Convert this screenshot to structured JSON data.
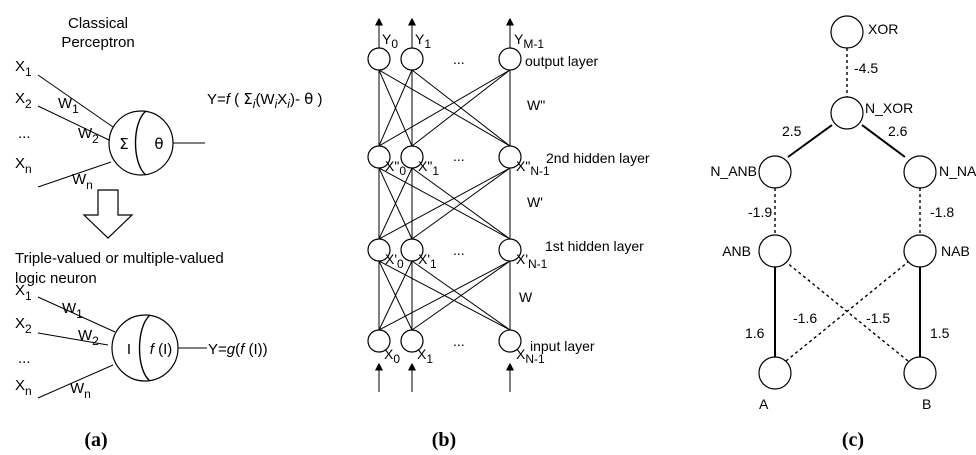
{
  "panel_a": {
    "caption": "(a)",
    "title_line1": "Classical",
    "title_line2": "Perceptron",
    "inputs_top": {
      "x1": "1",
      "x2": "2",
      "dots": "...",
      "xn": "n"
    },
    "weights_top": {
      "w1": "1",
      "w2": "2",
      "wn": "n"
    },
    "sigma": "Σ",
    "theta": "θ",
    "output_top": {
      "prefix": "Y=",
      "f": "f",
      "open": " ( ",
      "sum": "Σ",
      "sub_i": "i",
      "paren_w": "(W",
      "x": "X",
      "close": ")- ",
      "theta": "θ",
      "end": " )"
    },
    "subtitle_line1": "Triple-valued or multiple-valued",
    "subtitle_line2": "logic neuron",
    "neuron_left": "I",
    "neuron_right_f": "f",
    "neuron_right_arg": " (I)",
    "output_bottom": {
      "prefix": "Y=",
      "g": "g",
      "rest": "(",
      "f": "f",
      "end": " (I))"
    }
  },
  "panel_b": {
    "caption": "(b)",
    "output_labels": [
      "Y",
      "Y",
      "...",
      "Y"
    ],
    "output_subs": [
      "0",
      "1",
      "",
      "M-1"
    ],
    "output_layer": "output layer",
    "w2": "W\"",
    "hidden2_labels": [
      "X\"",
      "X\"",
      "...",
      "X\""
    ],
    "hidden2_subs": [
      "0",
      "1",
      "",
      "N-1"
    ],
    "hidden2_layer": "2nd hidden layer",
    "w1": "W'",
    "hidden1_labels": [
      "X'",
      "X'",
      "...",
      "X'"
    ],
    "hidden1_subs": [
      "0",
      "1",
      "",
      "N-1"
    ],
    "hidden1_layer": "1st hidden layer",
    "w0": "W",
    "input_labels": [
      "X",
      "X",
      "...",
      "X"
    ],
    "input_subs": [
      "0",
      "1",
      "",
      "N-1"
    ],
    "input_layer": "input layer"
  },
  "panel_c": {
    "caption": "(c)",
    "nodes": {
      "xor": "XOR",
      "n_xor": "N_XOR",
      "n_anb": "N_ANB",
      "n_nab": "N_NAB",
      "anb": "ANB",
      "nab": "NAB",
      "a": "A",
      "b": "B"
    },
    "weights": {
      "xor_nxor": "-4.5",
      "nxor_nanb": "2.5",
      "nxor_nnab": "2.6",
      "nanb_anb": "-1.9",
      "nnab_nab": "-1.8",
      "a_anb": "1.6",
      "a_nab": "-1.6",
      "b_anb": "-1.5",
      "b_nab": "1.5"
    }
  }
}
